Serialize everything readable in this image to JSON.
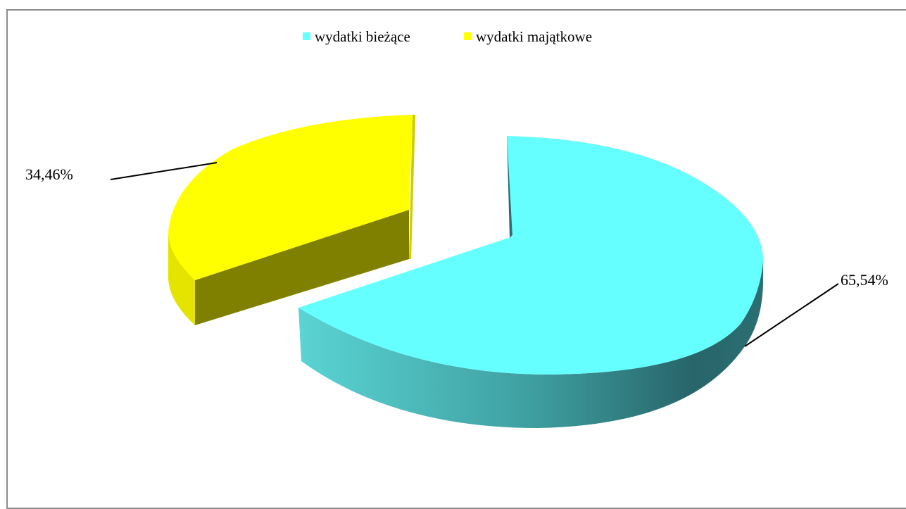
{
  "chart_data": {
    "type": "pie",
    "title": "",
    "categories": [
      "wydatki bieżące",
      "wydatki majątkowe"
    ],
    "values": [
      65.54,
      34.46
    ],
    "data_labels": [
      "65,54%",
      "34,46%"
    ],
    "colors": [
      "#66FFFF",
      "#FFFF00"
    ],
    "legend": {
      "placement": "top",
      "items": [
        {
          "label": "wydatki bieżące",
          "color": "#66FFFF"
        },
        {
          "label": "wydatki majątkowe",
          "color": "#FFFF00"
        }
      ]
    },
    "style": "3d-exploded"
  }
}
